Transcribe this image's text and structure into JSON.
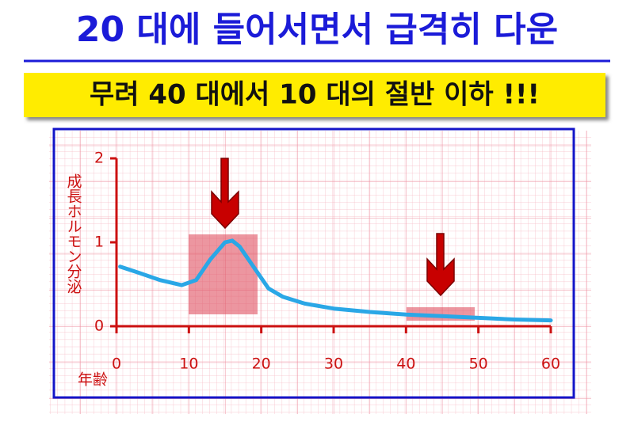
{
  "chart_data": {
    "type": "line",
    "title": "20 대에 들어서면서 급격히 다운",
    "subtitle": "무려 40 대에서 10 대의 절반 이하 !!!",
    "x_label": "年齢",
    "y_label": "成長ホルモン分泌",
    "x": [
      0.5,
      3,
      6,
      9,
      11,
      13,
      15,
      16,
      17,
      19,
      21,
      23,
      26,
      30,
      35,
      40,
      45,
      50,
      55,
      60
    ],
    "values": [
      0.71,
      0.64,
      0.55,
      0.49,
      0.55,
      0.8,
      1.0,
      1.02,
      0.95,
      0.7,
      0.45,
      0.35,
      0.27,
      0.21,
      0.17,
      0.14,
      0.12,
      0.1,
      0.08,
      0.07
    ],
    "color": "#2aa7e6",
    "axis_color": "#cc1111",
    "xlim": [
      0,
      60
    ],
    "xticks": [
      0,
      10,
      20,
      30,
      40,
      50,
      60
    ],
    "ylim": [
      0,
      2
    ],
    "yticks": [
      0,
      1,
      2
    ]
  }
}
